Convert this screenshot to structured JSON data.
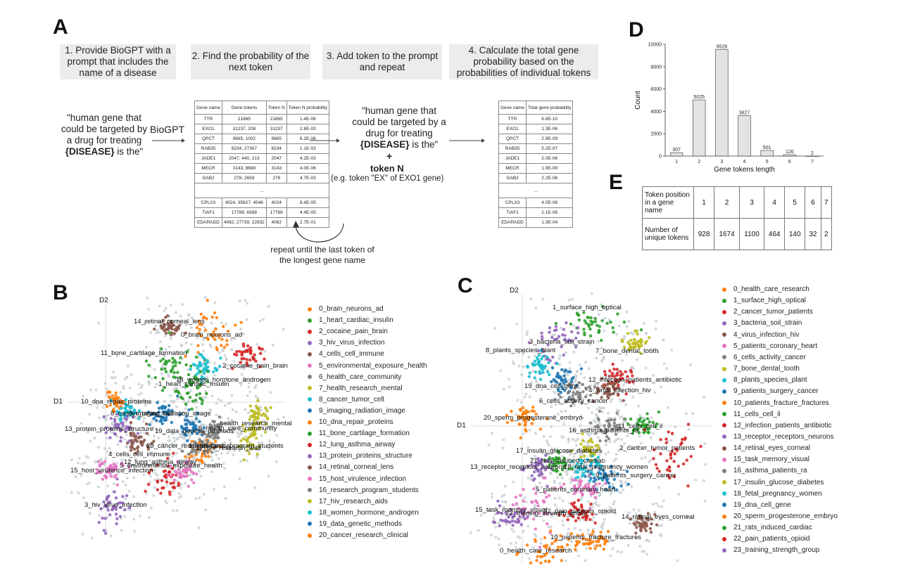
{
  "panels": {
    "a": "A",
    "b": "B",
    "c": "C",
    "d": "D",
    "e": "E"
  },
  "steps": [
    "1. Provide BioGPT with a prompt that includes the name of a disease",
    "2. Find the probability of the next token",
    "3. Add token to the prompt and repeat",
    "4. Calculate the total gene probability based on the probabilities of individual tokens"
  ],
  "prompt_quote_1": "\"human gene that could be targeted by a drug for treating",
  "prompt_disease": "{DISEASE}",
  "prompt_end_1": "is the\"",
  "biogpt_label": "BioGPT",
  "prompt_quote_2": "\"human gene that could be targeted by a drug for treating",
  "prompt_end_2": "is the\"",
  "plus": "+",
  "token_n": "token N",
  "token_example": "(e.g. token \"EX\" of EXO1 gene)",
  "repeat_note": "repeat until the last token of the longest gene name",
  "table_tokens": {
    "headers": [
      "Gene name",
      "Gene tokens",
      "Token N",
      "Token N probability"
    ],
    "rows_top": [
      [
        "TTR",
        "21865",
        "21865",
        "1.4E-06"
      ],
      [
        "EXO1",
        "31237, 208",
        "31237",
        "2.8E-03"
      ],
      [
        "QPCT",
        "9665, 1002",
        "9665",
        "6.2E-06"
      ],
      [
        "RAB35",
        "8234, 27367",
        "8234",
        "1.1E-03"
      ],
      [
        "JADE1",
        "2047, 440, 213",
        "2047",
        "4.2E-03"
      ],
      [
        "MECR",
        "3143, 8688",
        "3143",
        "4.0E-06"
      ],
      [
        "GAB2",
        "278, 2659",
        "278",
        "4.7E-03"
      ]
    ],
    "ellipsis": "...",
    "rows_bottom": [
      [
        "CPLX3",
        "4024, 35627, 4546",
        "4024",
        "8.4E-05"
      ],
      [
        "TIAF1",
        "17789, 6588",
        "17789",
        "4.4E-05"
      ],
      [
        "EDARADD",
        "4062, 27739, 22932",
        "4062",
        "2.7E-01"
      ]
    ]
  },
  "table_total": {
    "headers": [
      "Gene name",
      "Total gene probability"
    ],
    "rows_top": [
      [
        "TTR",
        "6.6E-10"
      ],
      [
        "EXO1",
        "1.3E-06"
      ],
      [
        "QPCT",
        "2.9E-09"
      ],
      [
        "RAB35",
        "5.2E-07"
      ],
      [
        "JADE1",
        "2.0E-06"
      ],
      [
        "MECR",
        "1.9E-09"
      ],
      [
        "GAB2",
        "2.2E-06"
      ]
    ],
    "ellipsis": "...",
    "rows_bottom": [
      [
        "CPLX3",
        "4.0E-08"
      ],
      [
        "TIAF1",
        "2.1E-08"
      ],
      [
        "EDARADD",
        "1.3E-04"
      ]
    ]
  },
  "chart_data": {
    "type": "bar",
    "categories": [
      "1",
      "2",
      "3",
      "4",
      "5",
      "6",
      "7"
    ],
    "values": [
      307,
      5025,
      9528,
      3627,
      501,
      126,
      2
    ],
    "value_labels": [
      "307",
      "5025",
      "9528",
      "3627",
      "501",
      "126",
      "2"
    ],
    "xlabel": "Gene tokens length",
    "ylabel": "Count",
    "ylim": [
      0,
      10000
    ],
    "yticks": [
      "0",
      "2000",
      "4000",
      "6000",
      "8000",
      "10000"
    ],
    "bar_color": "#e3e3e3"
  },
  "table_e": {
    "row1_label": "Token position in a gene name",
    "row1": [
      "1",
      "2",
      "3",
      "4",
      "5",
      "6",
      "7"
    ],
    "row2_label": "Number of unique tokens",
    "row2": [
      "928",
      "1674",
      "1100",
      "464",
      "140",
      "32",
      "2"
    ]
  },
  "scatter_b": {
    "axis_d1": "D1",
    "axis_d2": "D2",
    "legend": [
      {
        "label": "0_brain_neurons_ad",
        "color": "#ff7f0e"
      },
      {
        "label": "1_heart_cardiac_insulin",
        "color": "#2ca02c"
      },
      {
        "label": "2_cocaine_pain_brain",
        "color": "#d62728"
      },
      {
        "label": "3_hiv_virus_infection",
        "color": "#9467bd"
      },
      {
        "label": "4_cells_cell_immune",
        "color": "#8c564b"
      },
      {
        "label": "5_environmental_exposure_health",
        "color": "#e377c2"
      },
      {
        "label": "6_health_care_community",
        "color": "#7f7f7f"
      },
      {
        "label": "7_health_research_mental",
        "color": "#bcbd22"
      },
      {
        "label": "8_cancer_tumor_cell",
        "color": "#17becf"
      },
      {
        "label": "9_imaging_radiation_image",
        "color": "#1f77b4"
      },
      {
        "label": "10_dna_repair_proteins",
        "color": "#ff7f0e"
      },
      {
        "label": "11_bone_cartilage_formation",
        "color": "#2ca02c"
      },
      {
        "label": "12_lung_asthma_airway",
        "color": "#d62728"
      },
      {
        "label": "13_protein_proteins_structure",
        "color": "#9467bd"
      },
      {
        "label": "14_retinal_corneal_lens",
        "color": "#8c564b"
      },
      {
        "label": "15_host_virulence_infection",
        "color": "#e377c2"
      },
      {
        "label": "16_research_program_students",
        "color": "#7f7f7f"
      },
      {
        "label": "17_hiv_research_aids",
        "color": "#bcbd22"
      },
      {
        "label": "18_women_hormone_androgen",
        "color": "#17becf"
      },
      {
        "label": "19_data_genetic_methods",
        "color": "#1f77b4"
      },
      {
        "label": "20_cancer_research_clinical",
        "color": "#ff7f0e"
      }
    ],
    "clusters": [
      {
        "label": "14_retinal_corneal_lens",
        "color": "#8c564b"
      },
      {
        "label": "0_brain_neurons_ad",
        "color": "#ff7f0e"
      },
      {
        "label": "11_bone_cartilage_formation",
        "color": "#2ca02c"
      },
      {
        "label": "2_cocaine_pain_brain",
        "color": "#d62728"
      },
      {
        "label": "18_women_hormone_androgen",
        "color": "#17becf"
      },
      {
        "label": "1_heart_cardiac_insulin",
        "color": "#2ca02c"
      },
      {
        "label": "10_dna_repair_proteins",
        "color": "#ff7f0e"
      },
      {
        "label": "8_cancer_tumor_cell",
        "color": "#17becf"
      },
      {
        "label": "9_imaging_radiation_image",
        "color": "#1f77b4"
      },
      {
        "label": "7_health_research_mental",
        "color": "#bcbd22"
      },
      {
        "label": "13_protein_proteins_structure",
        "color": "#9467bd"
      },
      {
        "label": "19_data_genetic_methods",
        "color": "#1f77b4"
      },
      {
        "label": "6_health_care_community",
        "color": "#7f7f7f"
      },
      {
        "label": "4_cells_cell_immune",
        "color": "#8c564b"
      },
      {
        "label": "20_cancer_research_clinical",
        "color": "#ff7f0e"
      },
      {
        "label": "17_hiv_research_aids",
        "color": "#bcbd22"
      },
      {
        "label": "16_research_program_students",
        "color": "#7f7f7f"
      },
      {
        "label": "12_lung_asthma_airway",
        "color": "#d62728"
      },
      {
        "label": "5_environmental_exposure_health",
        "color": "#e377c2"
      },
      {
        "label": "15_host_virulence_infection",
        "color": "#e377c2"
      },
      {
        "label": "3_hiv_virus_infection",
        "color": "#9467bd"
      }
    ]
  },
  "scatter_c": {
    "axis_d1": "D1",
    "axis_d2": "D2",
    "legend": [
      {
        "label": "0_health_care_research",
        "color": "#ff7f0e"
      },
      {
        "label": "1_surface_high_optical",
        "color": "#2ca02c"
      },
      {
        "label": "2_cancer_tumor_patients",
        "color": "#d62728"
      },
      {
        "label": "3_bacteria_soil_strain",
        "color": "#9467bd"
      },
      {
        "label": "4_virus_infection_hiv",
        "color": "#8c564b"
      },
      {
        "label": "5_patients_coronary_heart",
        "color": "#e377c2"
      },
      {
        "label": "6_cells_activity_cancer",
        "color": "#7f7f7f"
      },
      {
        "label": "7_bone_dental_tooth",
        "color": "#bcbd22"
      },
      {
        "label": "8_plants_species_plant",
        "color": "#17becf"
      },
      {
        "label": "9_patients_surgery_cancer",
        "color": "#1f77b4"
      },
      {
        "label": "10_patients_fracture_fractures",
        "color": "#ff7f0e"
      },
      {
        "label": "11_cells_cell_il",
        "color": "#2ca02c"
      },
      {
        "label": "12_infection_patients_antibiotic",
        "color": "#d62728"
      },
      {
        "label": "13_receptor_receptors_neurons",
        "color": "#9467bd"
      },
      {
        "label": "14_retinal_eyes_corneal",
        "color": "#8c564b"
      },
      {
        "label": "15_task_memory_visual",
        "color": "#e377c2"
      },
      {
        "label": "16_asthma_patients_ra",
        "color": "#7f7f7f"
      },
      {
        "label": "17_insulin_glucose_diabetes",
        "color": "#bcbd22"
      },
      {
        "label": "18_fetal_pregnancy_women",
        "color": "#17becf"
      },
      {
        "label": "19_dna_cell_gene",
        "color": "#1f77b4"
      },
      {
        "label": "20_sperm_progesterone_embryo",
        "color": "#ff7f0e"
      },
      {
        "label": "21_rats_induced_cardiac",
        "color": "#2ca02c"
      },
      {
        "label": "22_pain_patients_opioid",
        "color": "#d62728"
      },
      {
        "label": "23_training_strength_group",
        "color": "#9467bd"
      }
    ],
    "clusters": [
      {
        "label": "1_surface_high_optical",
        "color": "#2ca02c"
      },
      {
        "label": "3_bacteria_soil_strain",
        "color": "#9467bd"
      },
      {
        "label": "8_plants_species_plant",
        "color": "#17becf"
      },
      {
        "label": "7_bone_dental_tooth",
        "color": "#bcbd22"
      },
      {
        "label": "12_infection_patients_antibiotic",
        "color": "#d62728"
      },
      {
        "label": "19_dna_cell_gene",
        "color": "#1f77b4"
      },
      {
        "label": "4_virus_infection_hiv",
        "color": "#8c564b"
      },
      {
        "label": "6_cells_activity_cancer",
        "color": "#7f7f7f"
      },
      {
        "label": "20_sperm_progesterone_embryo",
        "color": "#ff7f0e"
      },
      {
        "label": "11_cells_cell_il",
        "color": "#2ca02c"
      },
      {
        "label": "16_asthma_patients_ra",
        "color": "#7f7f7f"
      },
      {
        "label": "2_cancer_tumor_patients",
        "color": "#d62728"
      },
      {
        "label": "17_insulin_glucose_diabetes",
        "color": "#bcbd22"
      },
      {
        "label": "21_rats_induced_cardiac",
        "color": "#2ca02c"
      },
      {
        "label": "13_receptor_receptors_neurons",
        "color": "#9467bd"
      },
      {
        "label": "18_fetal_pregnancy_women",
        "color": "#17becf"
      },
      {
        "label": "9_patients_surgery_cancer",
        "color": "#1f77b4"
      },
      {
        "label": "5_patients_coronary_heart",
        "color": "#e377c2"
      },
      {
        "label": "15_task_memory_visual",
        "color": "#e377c2"
      },
      {
        "label": "23_training_strength_group",
        "color": "#9467bd"
      },
      {
        "label": "22_pain_patients_opioid",
        "color": "#d62728"
      },
      {
        "label": "14_retinal_eyes_corneal",
        "color": "#8c564b"
      },
      {
        "label": "10_patients_fracture_fractures",
        "color": "#ff7f0e"
      },
      {
        "label": "0_health_care_research",
        "color": "#ff7f0e"
      }
    ]
  }
}
